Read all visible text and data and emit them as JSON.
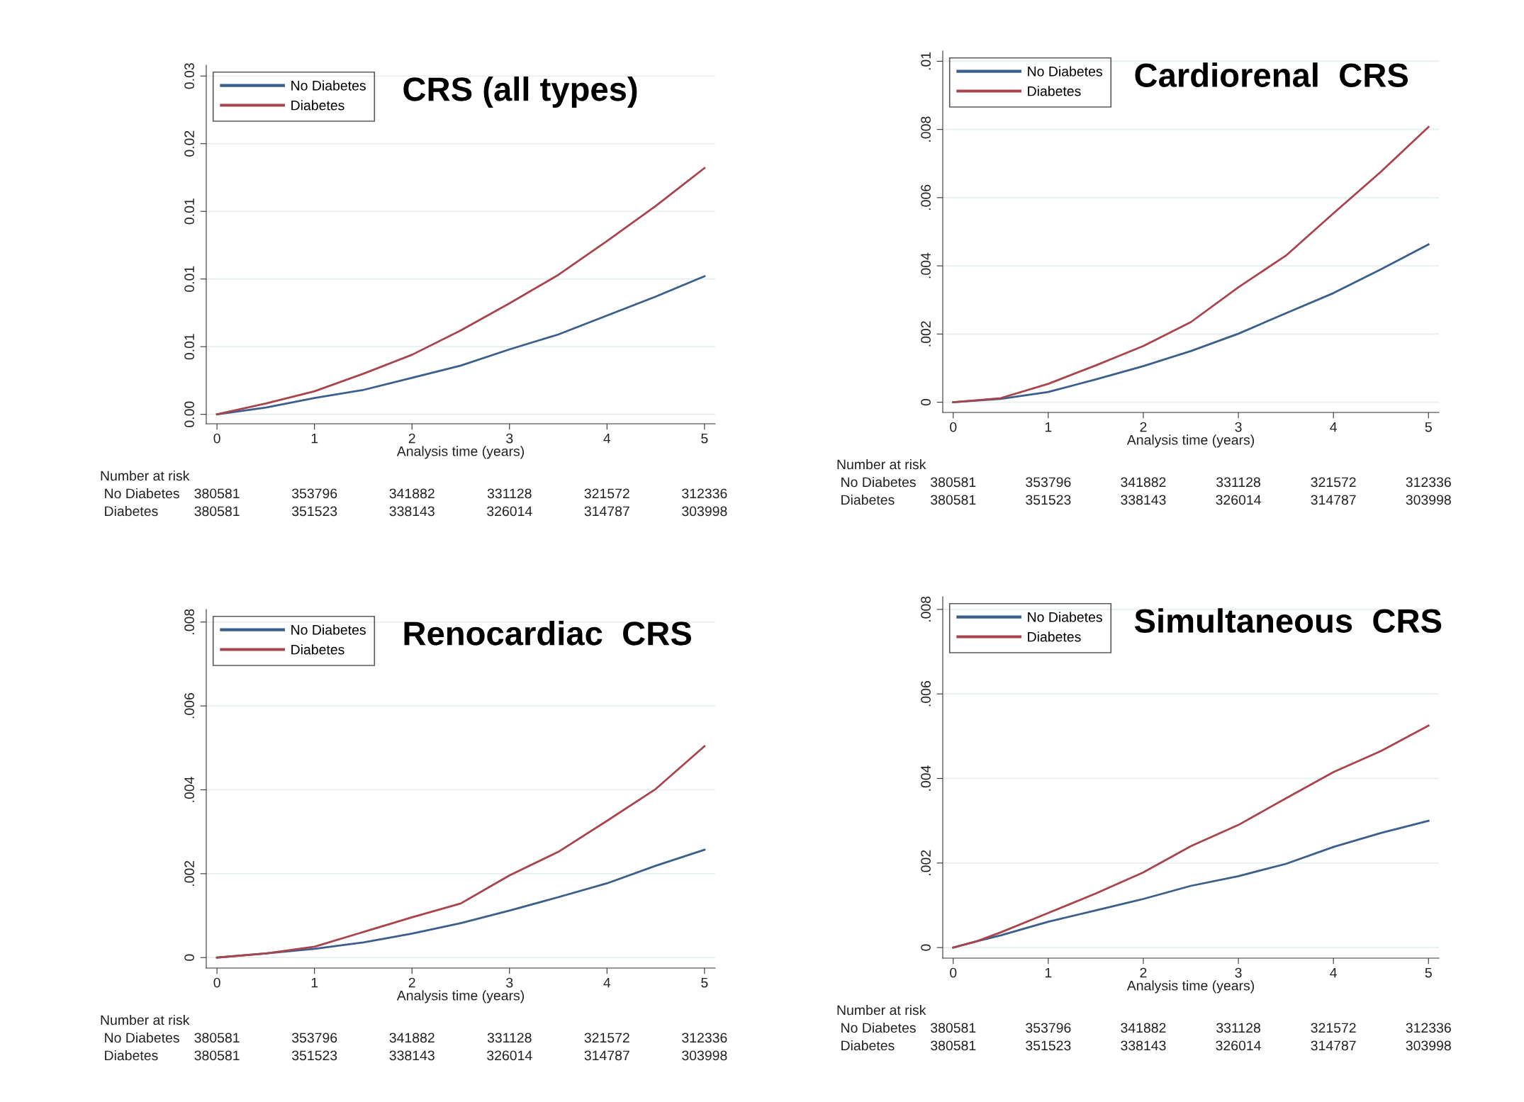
{
  "chart_data": [
    {
      "type": "line",
      "title": "CRS (all types)",
      "xlabel": "Analysis time (years)",
      "legend": "top left",
      "grid": "y",
      "xlim": [
        -0.11,
        5.11
      ],
      "xticks": [
        0,
        1,
        2,
        3,
        4,
        5
      ],
      "ylim": [
        -0.0007,
        0.0258
      ],
      "yticks": [
        {
          "value": 0,
          "label": "0.00"
        },
        {
          "value": 0.005,
          "label": "0.01"
        },
        {
          "value": 0.01,
          "label": "0.01"
        },
        {
          "value": 0.015,
          "label": "0.01"
        },
        {
          "value": 0.02,
          "label": "0.02"
        },
        {
          "value": 0.025,
          "label": "0.03"
        }
      ],
      "x": [
        0,
        0.5,
        1,
        1.5,
        2,
        2.5,
        3,
        3.5,
        4,
        4.5,
        5
      ],
      "series": [
        {
          "name": "No Diabetes",
          "color": "#3b5f8c",
          "values": [
            0,
            0.0005,
            0.0012,
            0.0018,
            0.0027,
            0.0036,
            0.0048,
            0.0059,
            0.0073,
            0.0087,
            0.0102
          ]
        },
        {
          "name": "Diabetes",
          "color": "#a8444c",
          "values": [
            0,
            0.0008,
            0.0017,
            0.003,
            0.0044,
            0.0062,
            0.0082,
            0.0103,
            0.0128,
            0.0154,
            0.0182
          ]
        }
      ],
      "annotations": [
        "Number at risk",
        "No Diabetes",
        "380581",
        "353796",
        "341882",
        "331128",
        "321572",
        "312336",
        "Diabetes",
        "380581",
        "351523",
        "338143",
        "326014",
        "314787",
        "303998"
      ]
    },
    {
      "type": "line",
      "title": "Cardiorenal  CRS",
      "xlabel": "Analysis time (years)",
      "legend": "top left",
      "grid": "y",
      "xlim": [
        -0.11,
        5.11
      ],
      "xticks": [
        0,
        1,
        2,
        3,
        4,
        5
      ],
      "ylim": [
        -0.0003,
        0.0103
      ],
      "yticks": [
        {
          "value": 0,
          "label": "0"
        },
        {
          "value": 0.002,
          "label": ".002"
        },
        {
          "value": 0.004,
          "label": ".004"
        },
        {
          "value": 0.006,
          "label": ".006"
        },
        {
          "value": 0.008,
          "label": ".008"
        },
        {
          "value": 0.01,
          "label": ".01"
        }
      ],
      "x": [
        0,
        0.5,
        1,
        1.5,
        2,
        2.5,
        3,
        3.5,
        4,
        4.5,
        5
      ],
      "series": [
        {
          "name": "No Diabetes",
          "color": "#3b5f8c",
          "values": [
            0,
            0.0001,
            0.0003,
            0.00067,
            0.00106,
            0.0015,
            0.00201,
            0.00261,
            0.0032,
            0.0039,
            0.00463
          ]
        },
        {
          "name": "Diabetes",
          "color": "#a8444c",
          "values": [
            0,
            0.00012,
            0.00054,
            0.00108,
            0.00165,
            0.00235,
            0.00337,
            0.0043,
            0.00554,
            0.00676,
            0.00807
          ]
        }
      ],
      "annotations": [
        "Number at risk",
        "No Diabetes",
        "380581",
        "353796",
        "341882",
        "331128",
        "321572",
        "312336",
        "Diabetes",
        "380581",
        "351523",
        "338143",
        "326014",
        "314787",
        "303998"
      ]
    },
    {
      "type": "line",
      "title": "Renocardiac  CRS",
      "xlabel": "Analysis time (years)",
      "legend": "top left",
      "grid": "y",
      "xlim": [
        -0.11,
        5.11
      ],
      "xticks": [
        0,
        1,
        2,
        3,
        4,
        5
      ],
      "ylim": [
        -0.00025,
        0.0083
      ],
      "yticks": [
        {
          "value": 0,
          "label": "0"
        },
        {
          "value": 0.002,
          "label": ".002"
        },
        {
          "value": 0.004,
          "label": ".004"
        },
        {
          "value": 0.006,
          "label": ".006"
        },
        {
          "value": 0.008,
          "label": ".008"
        }
      ],
      "x": [
        0,
        0.5,
        1,
        1.5,
        2,
        2.5,
        3,
        3.5,
        4,
        4.5,
        5
      ],
      "series": [
        {
          "name": "No Diabetes",
          "color": "#3b5f8c",
          "values": [
            0,
            0.0001,
            0.00021,
            0.00036,
            0.00057,
            0.00082,
            0.00112,
            0.00144,
            0.00177,
            0.00219,
            0.00257
          ]
        },
        {
          "name": "Diabetes",
          "color": "#a8444c",
          "values": [
            0,
            0.0001,
            0.00026,
            0.00061,
            0.00096,
            0.00129,
            0.00196,
            0.00252,
            0.00326,
            0.00402,
            0.00504
          ]
        }
      ],
      "annotations": [
        "Number at risk",
        "No Diabetes",
        "380581",
        "353796",
        "341882",
        "331128",
        "321572",
        "312336",
        "Diabetes",
        "380581",
        "351523",
        "338143",
        "326014",
        "314787",
        "303998"
      ]
    },
    {
      "type": "line",
      "title": "Simultaneous  CRS",
      "xlabel": "Analysis time (years)",
      "legend": "top left",
      "grid": "y",
      "xlim": [
        -0.11,
        5.11
      ],
      "xticks": [
        0,
        1,
        2,
        3,
        4,
        5
      ],
      "ylim": [
        -0.00025,
        0.0083
      ],
      "yticks": [
        {
          "value": 0,
          "label": "0"
        },
        {
          "value": 0.002,
          "label": ".002"
        },
        {
          "value": 0.004,
          "label": ".004"
        },
        {
          "value": 0.006,
          "label": ".006"
        },
        {
          "value": 0.008,
          "label": ".008"
        }
      ],
      "x": [
        0,
        0.25,
        0.5,
        1,
        1.5,
        2,
        2.5,
        3,
        3.5,
        4,
        4.5,
        5
      ],
      "series": [
        {
          "name": "No Diabetes",
          "color": "#3b5f8c",
          "values": [
            0,
            0.00015,
            0.00029,
            0.00061,
            0.00088,
            0.00115,
            0.00146,
            0.00169,
            0.00198,
            0.00238,
            0.00271,
            0.003
          ]
        },
        {
          "name": "Diabetes",
          "color": "#a8444c",
          "values": [
            0,
            0.00015,
            0.00036,
            0.00082,
            0.00128,
            0.00178,
            0.0024,
            0.0029,
            0.00353,
            0.00415,
            0.00465,
            0.00525
          ]
        }
      ],
      "annotations": [
        "Number at risk",
        "No Diabetes",
        "380581",
        "353796",
        "341882",
        "331128",
        "321572",
        "312336",
        "Diabetes",
        "380581",
        "351523",
        "338143",
        "326014",
        "314787",
        "303998"
      ]
    }
  ]
}
